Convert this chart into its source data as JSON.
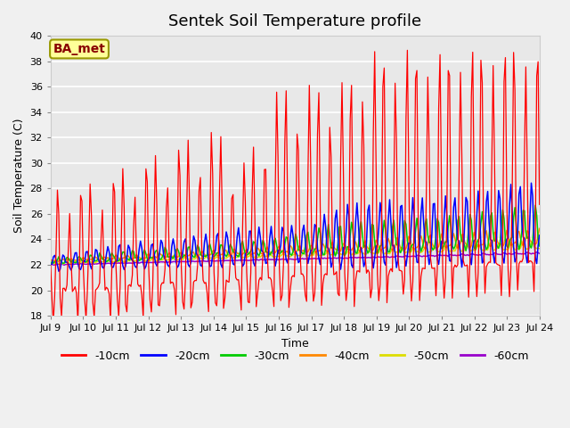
{
  "title": "Sentek Soil Temperature profile",
  "xlabel": "Time",
  "ylabel": "Soil Temperature (C)",
  "ylim": [
    18,
    40
  ],
  "yticks": [
    18,
    20,
    22,
    24,
    26,
    28,
    30,
    32,
    34,
    36,
    38,
    40
  ],
  "fig_bg_color": "#f0f0f0",
  "plot_bg_color": "#e8e8e8",
  "annotation_text": "BA_met",
  "annotation_bg": "#ffff99",
  "annotation_border": "#999900",
  "annotation_fg": "#880000",
  "series_colors": [
    "#ff0000",
    "#0000ff",
    "#00cc00",
    "#ff8800",
    "#dddd00",
    "#9900cc"
  ],
  "series_labels": [
    "-10cm",
    "-20cm",
    "-30cm",
    "-40cm",
    "-50cm",
    "-60cm"
  ],
  "title_fontsize": 13,
  "axis_fontsize": 9,
  "tick_fontsize": 8,
  "legend_fontsize": 9,
  "grid_color": "#ffffff",
  "n_days": 15,
  "start_day": 9
}
